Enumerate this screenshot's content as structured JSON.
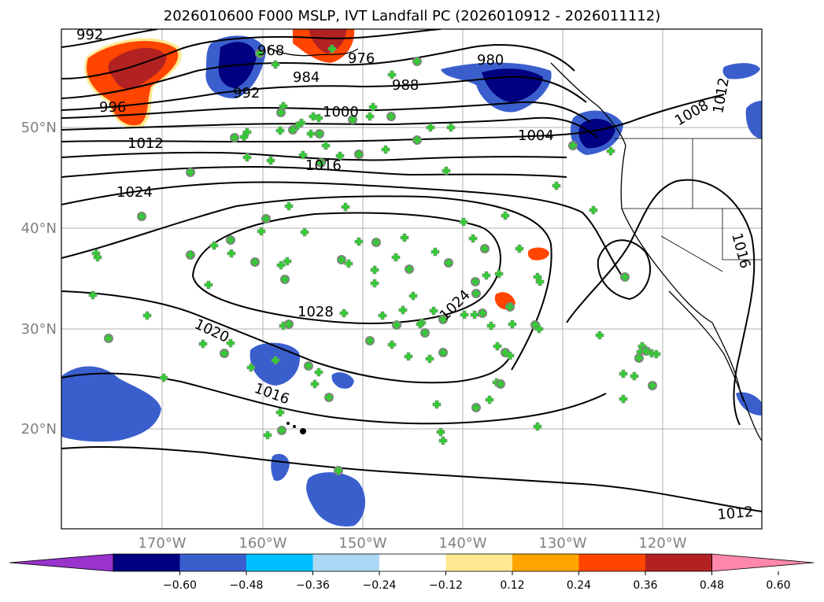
{
  "title": "2026010600 F000 MSLP, IVT Landfall PC (2026010912 - 2026011112)",
  "latitude_labels": [
    "50°N",
    "40°N",
    "30°N",
    "20°N"
  ],
  "longitude_labels": [
    "170°W",
    "160°W",
    "150°W",
    "140°W",
    "130°W",
    "120°W"
  ],
  "isobar_labels": [
    "992",
    "968",
    "976",
    "980",
    "984",
    "988",
    "992",
    "996",
    "1000",
    "1004",
    "1008",
    "1012",
    "1012",
    "1016",
    "1024",
    "1028",
    "1024",
    "1020",
    "1016",
    "1016",
    "1012"
  ],
  "colorbar": {
    "ticks": [
      "−0.60",
      "−0.48",
      "−0.36",
      "−0.24",
      "−0.12",
      "0.12",
      "0.24",
      "0.36",
      "0.48",
      "0.60"
    ],
    "colors": [
      "#9933cc",
      "#000080",
      "#3a5fcd",
      "#00bfff",
      "#add8f5",
      "#ffffff",
      "#ffe890",
      "#ffa500",
      "#ff4500",
      "#b22222",
      "#ff88aa"
    ]
  },
  "colors": {
    "station_marker": "#33cc33",
    "station_dot": "#808080",
    "isobar": "#000000",
    "grid": "#b0b0b0"
  }
}
